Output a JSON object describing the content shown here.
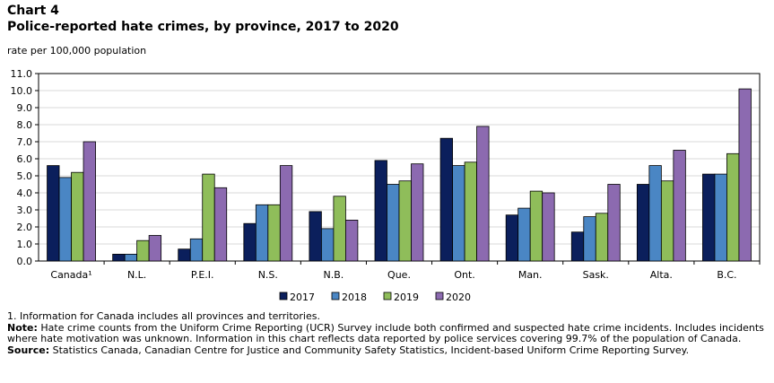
{
  "header": {
    "chart_label": "Chart 4",
    "title": "Police-reported hate crimes, by province, 2017 to 2020",
    "subtitle": "rate per 100,000 population"
  },
  "chart_data": {
    "type": "bar",
    "title": "Police-reported hate crimes, by province, 2017 to 2020",
    "xlabel": "",
    "ylabel": "rate per 100,000 population",
    "ylim": [
      0,
      11
    ],
    "yticks": [
      "0.0",
      "1.0",
      "2.0",
      "3.0",
      "4.0",
      "5.0",
      "6.0",
      "7.0",
      "8.0",
      "9.0",
      "10.0",
      "11.0"
    ],
    "grid": true,
    "legend_position": "bottom",
    "categories": [
      "Canada¹",
      "N.L.",
      "P.E.I.",
      "N.S.",
      "N.B.",
      "Que.",
      "Ont.",
      "Man.",
      "Sask.",
      "Alta.",
      "B.C."
    ],
    "series": [
      {
        "name": "2017",
        "color": "#0b1f5c",
        "values": [
          5.6,
          0.4,
          0.7,
          2.2,
          2.9,
          5.9,
          7.2,
          2.7,
          1.7,
          4.5,
          5.1
        ]
      },
      {
        "name": "2018",
        "color": "#4a86c4",
        "values": [
          4.9,
          0.4,
          1.3,
          3.3,
          1.9,
          4.5,
          5.6,
          3.1,
          2.6,
          5.6,
          5.1
        ]
      },
      {
        "name": "2019",
        "color": "#8fbd5a",
        "values": [
          5.2,
          1.2,
          5.1,
          3.3,
          3.8,
          4.7,
          5.8,
          4.1,
          2.8,
          4.7,
          6.3
        ]
      },
      {
        "name": "2020",
        "color": "#8c6ab0",
        "values": [
          7.0,
          1.5,
          4.3,
          5.6,
          2.4,
          5.7,
          7.9,
          4.0,
          4.5,
          6.5,
          10.1
        ]
      }
    ]
  },
  "notes": {
    "footnote": "1. Information for Canada includes all provinces and territories.",
    "note_label": "Note:",
    "note_text": " Hate crime counts from the Uniform Crime Reporting (UCR) Survey include both confirmed and suspected hate crime incidents. Includes incidents where hate motivation was unknown. Information in this chart reflects data reported by police services covering 99.7% of the population of Canada.",
    "source_label": "Source:",
    "source_text": " Statistics Canada, Canadian Centre for Justice and Community Safety Statistics, Incident-based Uniform Crime Reporting Survey."
  }
}
